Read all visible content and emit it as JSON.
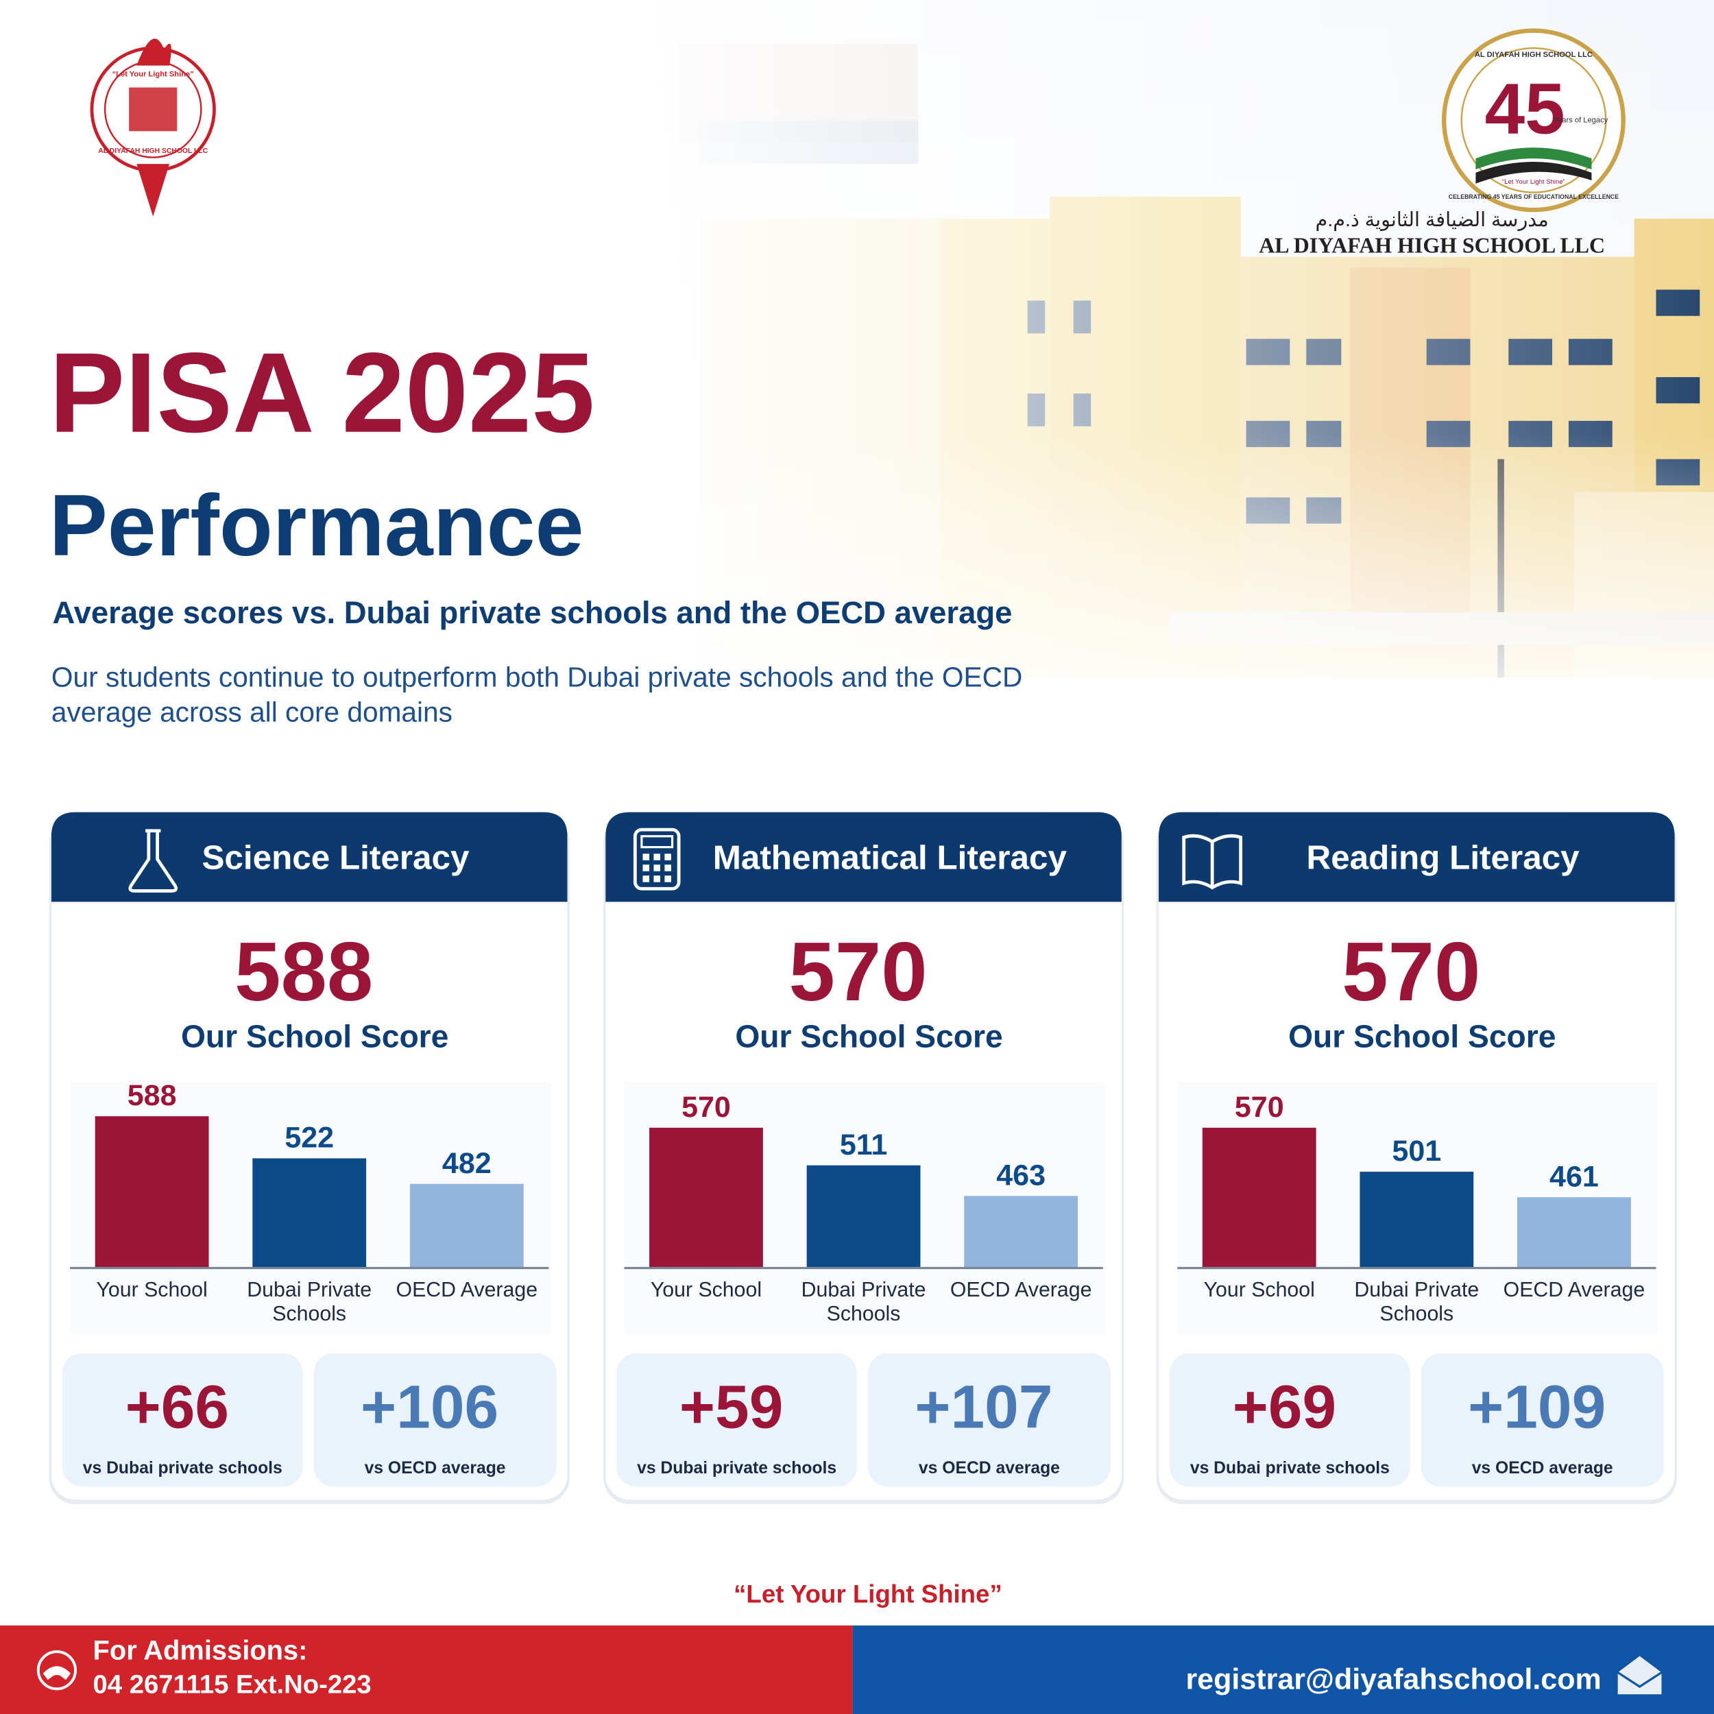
{
  "logos": {
    "left_motto": "“Let Your Light Shine”",
    "left_name": "AL DIYAFAH HIGH SCHOOL LLC",
    "badge_top": "AL DIYAFAH HIGH SCHOOL LLC",
    "badge_number": "45",
    "badge_years": "Years of Legacy",
    "badge_motto": "“Let Your Light Shine”",
    "badge_bottom": "CELEBRATING 45 YEARS OF EDUCATIONAL EXCELLENCE"
  },
  "building_sign": {
    "arabic": "مدرسة الضيافة الثانوية ذ.م.م",
    "english": "AL DIYAFAH HIGH SCHOOL LLC"
  },
  "header": {
    "title": "PISA 2025",
    "title_second": "Performance",
    "subtitle": "Average scores vs. Dubai private schools and the OECD average",
    "description": [
      "Our students continue to outperform both Dubai private schools and the OECD",
      "average across all core domains"
    ]
  },
  "chart_data": [
    {
      "type": "bar",
      "title": "Science Literacy",
      "score": 588,
      "score_label": "Our School Score",
      "categories": [
        "Your School",
        "Dubai Private Schools",
        "OECD Average"
      ],
      "values": [
        588,
        522,
        482
      ],
      "colors": [
        "#9b1538",
        "#0d4a8a",
        "#93b4dc"
      ],
      "ylim": [
        350,
        650
      ],
      "comparisons": [
        {
          "label": "+66",
          "caption": "vs Dubai private schools"
        },
        {
          "label": "+106",
          "caption": "vs OECD average"
        }
      ]
    },
    {
      "type": "bar",
      "title": "Mathematical Literacy",
      "score": 570,
      "score_label": "Our School Score",
      "categories": [
        "Your School",
        "Dubai Private Schools",
        "OECD Average"
      ],
      "values": [
        570,
        511,
        463
      ],
      "colors": [
        "#9b1538",
        "#0d4a8a",
        "#93b4dc"
      ],
      "ylim": [
        350,
        650
      ],
      "comparisons": [
        {
          "label": "+59",
          "caption": "vs Dubai private schools"
        },
        {
          "label": "+107",
          "caption": "vs OECD average"
        }
      ]
    },
    {
      "type": "bar",
      "title": "Reading Literacy",
      "score": 570,
      "score_label": "Our School Score",
      "categories": [
        "Your School",
        "Dubai Private Schools",
        "OECD Average"
      ],
      "values": [
        570,
        501,
        461
      ],
      "colors": [
        "#9b1538",
        "#0d4a8a",
        "#93b4dc"
      ],
      "ylim": [
        350,
        650
      ],
      "comparisons": [
        {
          "label": "+69",
          "caption": "vs Dubai private schools"
        },
        {
          "label": "+109",
          "caption": "vs OECD average"
        }
      ]
    }
  ],
  "tagline": "“Let Your Light Shine”",
  "footer": {
    "admissions_label": "For Admissions:",
    "phone": "04 2671115 Ext.No-223",
    "email": "registrar@diyafahschool.com"
  }
}
